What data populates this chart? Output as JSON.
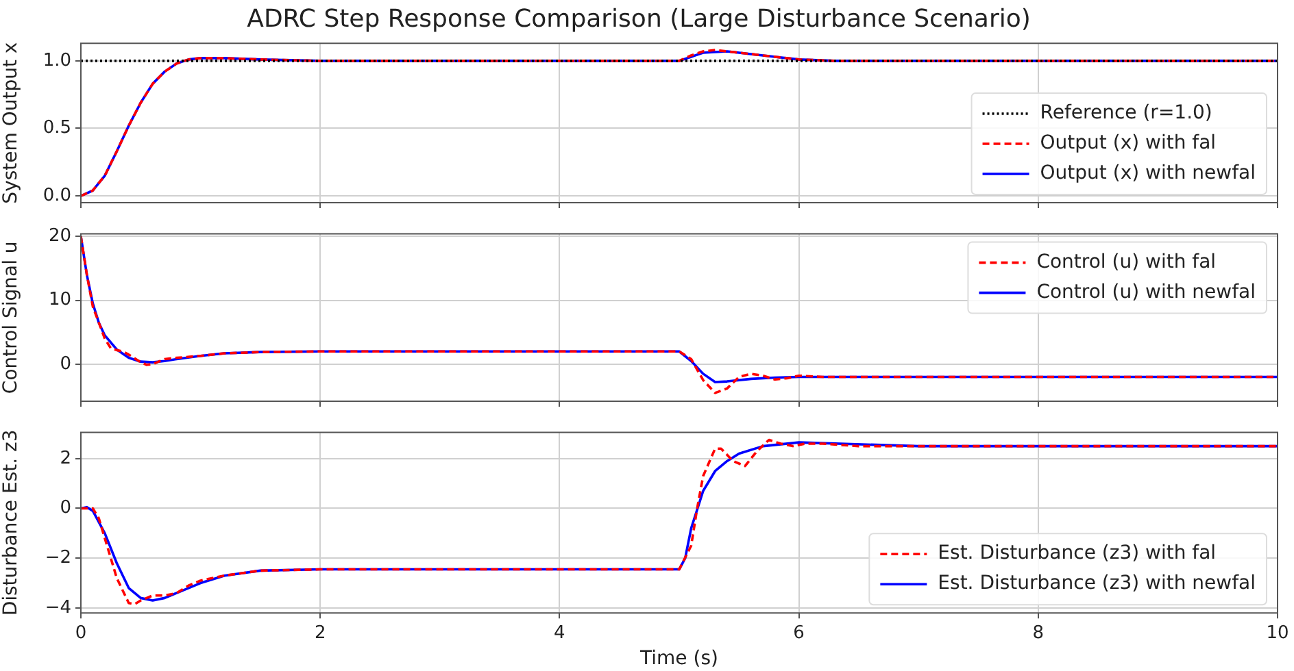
{
  "chart_data": [
    {
      "type": "line",
      "title": "ADRC Step Response Comparison (Large Disturbance Scenario)",
      "ylabel": "System Output x",
      "xlim": [
        0,
        10
      ],
      "xticks": [
        0,
        2,
        4,
        6,
        8,
        10
      ],
      "ylim": [
        -0.05,
        1.13
      ],
      "yticks": [
        {
          "value": 0,
          "label": "0.0"
        },
        {
          "value": 0.5,
          "label": "0.5"
        },
        {
          "value": 1,
          "label": "1.0"
        }
      ],
      "grid": true,
      "legend": "lower right",
      "tick_labels": "y",
      "series": [
        {
          "name": "Reference (r=1.0)",
          "color": "#000000",
          "line_style": "dotted",
          "x": [
            0,
            10
          ],
          "values": [
            1.0,
            1.0
          ]
        },
        {
          "name": "Output (x) with fal",
          "color": "#ff0000",
          "line_style": "dashed",
          "x": [
            0,
            0.1,
            0.2,
            0.3,
            0.4,
            0.5,
            0.6,
            0.7,
            0.8,
            0.9,
            1.0,
            1.2,
            1.5,
            2,
            5,
            5.1,
            5.2,
            5.3,
            5.4,
            5.6,
            5.8,
            6,
            6.3,
            10
          ],
          "values": [
            0,
            0.04,
            0.15,
            0.33,
            0.52,
            0.69,
            0.83,
            0.92,
            0.98,
            1.01,
            1.02,
            1.02,
            1.01,
            1.0,
            1.0,
            1.04,
            1.07,
            1.08,
            1.07,
            1.05,
            1.03,
            1.01,
            1.0,
            1.0
          ]
        },
        {
          "name": "Output (x) with newfal",
          "color": "#0000ff",
          "line_style": "solid",
          "x": [
            0,
            0.1,
            0.2,
            0.3,
            0.4,
            0.5,
            0.6,
            0.7,
            0.8,
            0.9,
            1.0,
            1.2,
            1.5,
            2,
            5,
            5.1,
            5.2,
            5.4,
            5.6,
            5.8,
            6,
            6.3,
            10
          ],
          "values": [
            0,
            0.04,
            0.15,
            0.33,
            0.52,
            0.69,
            0.83,
            0.92,
            0.98,
            1.01,
            1.02,
            1.02,
            1.01,
            1.0,
            1.0,
            1.03,
            1.06,
            1.07,
            1.05,
            1.03,
            1.01,
            1.0,
            1.0
          ]
        }
      ]
    },
    {
      "type": "line",
      "ylabel": "Control Signal u",
      "xlim": [
        0,
        10
      ],
      "xticks": [
        0,
        2,
        4,
        6,
        8,
        10
      ],
      "ylim": [
        -5.8,
        20.4
      ],
      "yticks": [
        0,
        10,
        20
      ],
      "grid": true,
      "legend": "top right",
      "tick_labels": "y",
      "series": [
        {
          "name": "Control (u) with fal",
          "color": "#ff0000",
          "line_style": "dashed",
          "x": [
            0,
            0.05,
            0.1,
            0.2,
            0.25,
            0.3,
            0.35,
            0.4,
            0.5,
            0.55,
            0.6,
            0.7,
            0.8,
            1.0,
            1.2,
            1.5,
            2,
            5,
            5.1,
            5.2,
            5.3,
            5.4,
            5.5,
            5.6,
            5.7,
            5.8,
            5.9,
            6.0,
            6.2,
            10
          ],
          "values": [
            20,
            14,
            9,
            4,
            2.5,
            2.2,
            2.0,
            1.5,
            0.3,
            -0.1,
            0.0,
            0.8,
            1.0,
            1.3,
            1.7,
            1.9,
            2.0,
            2.0,
            0.8,
            -2.5,
            -4.5,
            -3.8,
            -2.0,
            -1.5,
            -1.8,
            -2.4,
            -2.2,
            -1.8,
            -2.0,
            -2.0
          ]
        },
        {
          "name": "Control (u) with newfal",
          "color": "#0000ff",
          "line_style": "solid",
          "x": [
            0,
            0.05,
            0.1,
            0.15,
            0.2,
            0.3,
            0.4,
            0.5,
            0.6,
            0.7,
            0.8,
            1.0,
            1.2,
            1.5,
            2,
            5,
            5.1,
            5.2,
            5.3,
            5.4,
            5.6,
            5.8,
            6,
            10
          ],
          "values": [
            20,
            14,
            9.5,
            6.5,
            4.5,
            2.3,
            1.0,
            0.4,
            0.3,
            0.5,
            0.8,
            1.3,
            1.7,
            1.9,
            2.0,
            2.0,
            0.5,
            -1.5,
            -2.8,
            -2.7,
            -2.3,
            -2.1,
            -2.0,
            -2.0
          ]
        }
      ]
    },
    {
      "type": "line",
      "ylabel": "Disturbance Est. z3",
      "xlabel": "Time (s)",
      "xlim": [
        0,
        10
      ],
      "xticks": [
        0,
        2,
        4,
        6,
        8,
        10
      ],
      "ylim": [
        -4.2,
        3.05
      ],
      "yticks": [
        {
          "value": -4,
          "label": "−4"
        },
        {
          "value": -2,
          "label": "−2"
        },
        0,
        2
      ],
      "grid": true,
      "legend": "lower right",
      "series": [
        {
          "name": "Est. Disturbance (z3) with fal",
          "color": "#ff0000",
          "line_style": "dashed",
          "x": [
            0,
            0.1,
            0.15,
            0.2,
            0.3,
            0.4,
            0.45,
            0.5,
            0.6,
            0.7,
            0.8,
            0.9,
            1.0,
            1.2,
            1.5,
            2,
            5,
            5.1,
            5.15,
            5.2,
            5.3,
            5.35,
            5.45,
            5.55,
            5.65,
            5.75,
            5.85,
            5.95,
            6.05,
            6.2,
            6.5,
            10
          ],
          "values": [
            0,
            0.0,
            -0.4,
            -1.2,
            -2.8,
            -3.8,
            -3.85,
            -3.7,
            -3.5,
            -3.5,
            -3.4,
            -3.1,
            -2.9,
            -2.7,
            -2.5,
            -2.45,
            -2.45,
            -1.5,
            0.0,
            1.3,
            2.4,
            2.4,
            1.9,
            1.7,
            2.3,
            2.75,
            2.6,
            2.5,
            2.6,
            2.6,
            2.5,
            2.5
          ]
        },
        {
          "name": "Est. Disturbance (z3) with newfal",
          "color": "#0000ff",
          "line_style": "solid",
          "x": [
            0,
            0.05,
            0.1,
            0.2,
            0.3,
            0.4,
            0.5,
            0.6,
            0.7,
            0.8,
            1.0,
            1.2,
            1.5,
            2,
            5,
            5.05,
            5.1,
            5.2,
            5.3,
            5.4,
            5.5,
            5.7,
            6,
            7,
            10
          ],
          "values": [
            0,
            0.05,
            -0.1,
            -1.0,
            -2.2,
            -3.2,
            -3.6,
            -3.7,
            -3.6,
            -3.4,
            -3.0,
            -2.7,
            -2.5,
            -2.45,
            -2.45,
            -2.0,
            -0.8,
            0.7,
            1.5,
            1.9,
            2.2,
            2.5,
            2.65,
            2.5,
            2.5
          ]
        }
      ]
    }
  ]
}
